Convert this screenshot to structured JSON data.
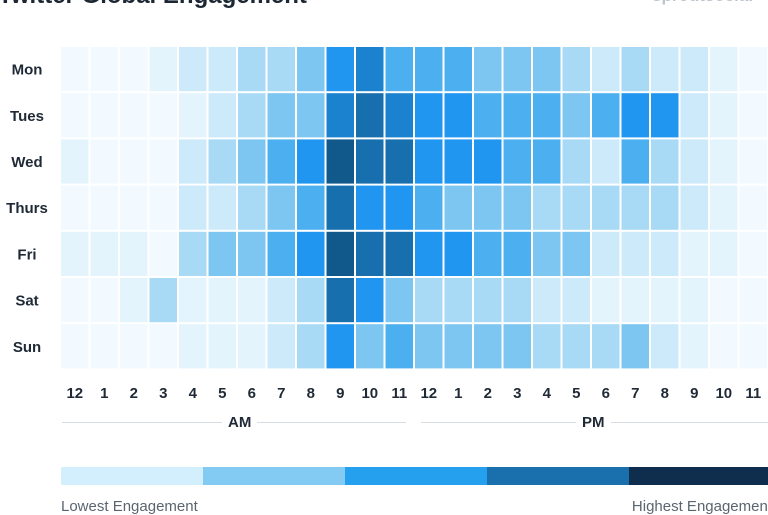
{
  "chart_data": {
    "type": "heatmap",
    "title": "Twitter Global Engagement",
    "source_logo": "sproutsocial",
    "rows": [
      "Mon",
      "Tues",
      "Wed",
      "Thurs",
      "Fri",
      "Sat",
      "Sun"
    ],
    "columns": [
      "12",
      "1",
      "2",
      "3",
      "4",
      "5",
      "6",
      "7",
      "8",
      "9",
      "10",
      "11",
      "12",
      "1",
      "2",
      "3",
      "4",
      "5",
      "6",
      "7",
      "8",
      "9",
      "10",
      "11"
    ],
    "period_labels": [
      "AM",
      "PM"
    ],
    "scale_levels": 9,
    "values": [
      [
        0,
        0,
        0,
        1,
        2,
        2,
        3,
        3,
        4,
        6,
        7,
        5,
        5,
        5,
        4,
        4,
        4,
        3,
        2,
        3,
        2,
        2,
        1,
        0
      ],
      [
        0,
        0,
        0,
        0,
        1,
        2,
        3,
        4,
        4,
        7,
        8,
        7,
        6,
        6,
        5,
        5,
        5,
        4,
        5,
        6,
        6,
        2,
        1,
        0
      ],
      [
        1,
        0,
        0,
        0,
        2,
        3,
        4,
        5,
        6,
        9,
        8,
        8,
        6,
        6,
        6,
        5,
        5,
        3,
        2,
        5,
        3,
        2,
        1,
        0
      ],
      [
        0,
        0,
        0,
        0,
        2,
        2,
        3,
        4,
        5,
        8,
        6,
        6,
        5,
        4,
        4,
        4,
        3,
        3,
        3,
        3,
        3,
        2,
        1,
        0
      ],
      [
        1,
        1,
        1,
        0,
        3,
        4,
        4,
        5,
        6,
        9,
        8,
        8,
        6,
        6,
        5,
        5,
        4,
        4,
        2,
        2,
        2,
        1,
        1,
        0
      ],
      [
        0,
        0,
        1,
        3,
        1,
        1,
        1,
        2,
        3,
        8,
        6,
        4,
        3,
        3,
        3,
        3,
        2,
        2,
        1,
        1,
        1,
        1,
        0,
        0
      ],
      [
        0,
        0,
        0,
        0,
        1,
        1,
        1,
        2,
        3,
        6,
        4,
        5,
        4,
        4,
        4,
        4,
        3,
        3,
        3,
        4,
        2,
        1,
        0,
        0
      ]
    ],
    "legend": {
      "low_label": "Lowest Engagement",
      "high_label": "Highest Engagement"
    },
    "palette": [
      "#f2faff",
      "#e4f4fd",
      "#cdeafb",
      "#a8daf6",
      "#7cc6f1",
      "#4cb0f0",
      "#2196f0",
      "#1b82cf",
      "#176fae",
      "#12598b",
      "#0a2a47"
    ],
    "legend_colors": [
      "#d3eefc",
      "#83cbf2",
      "#24a0ef",
      "#1a70ad",
      "#0f2e4d"
    ]
  }
}
